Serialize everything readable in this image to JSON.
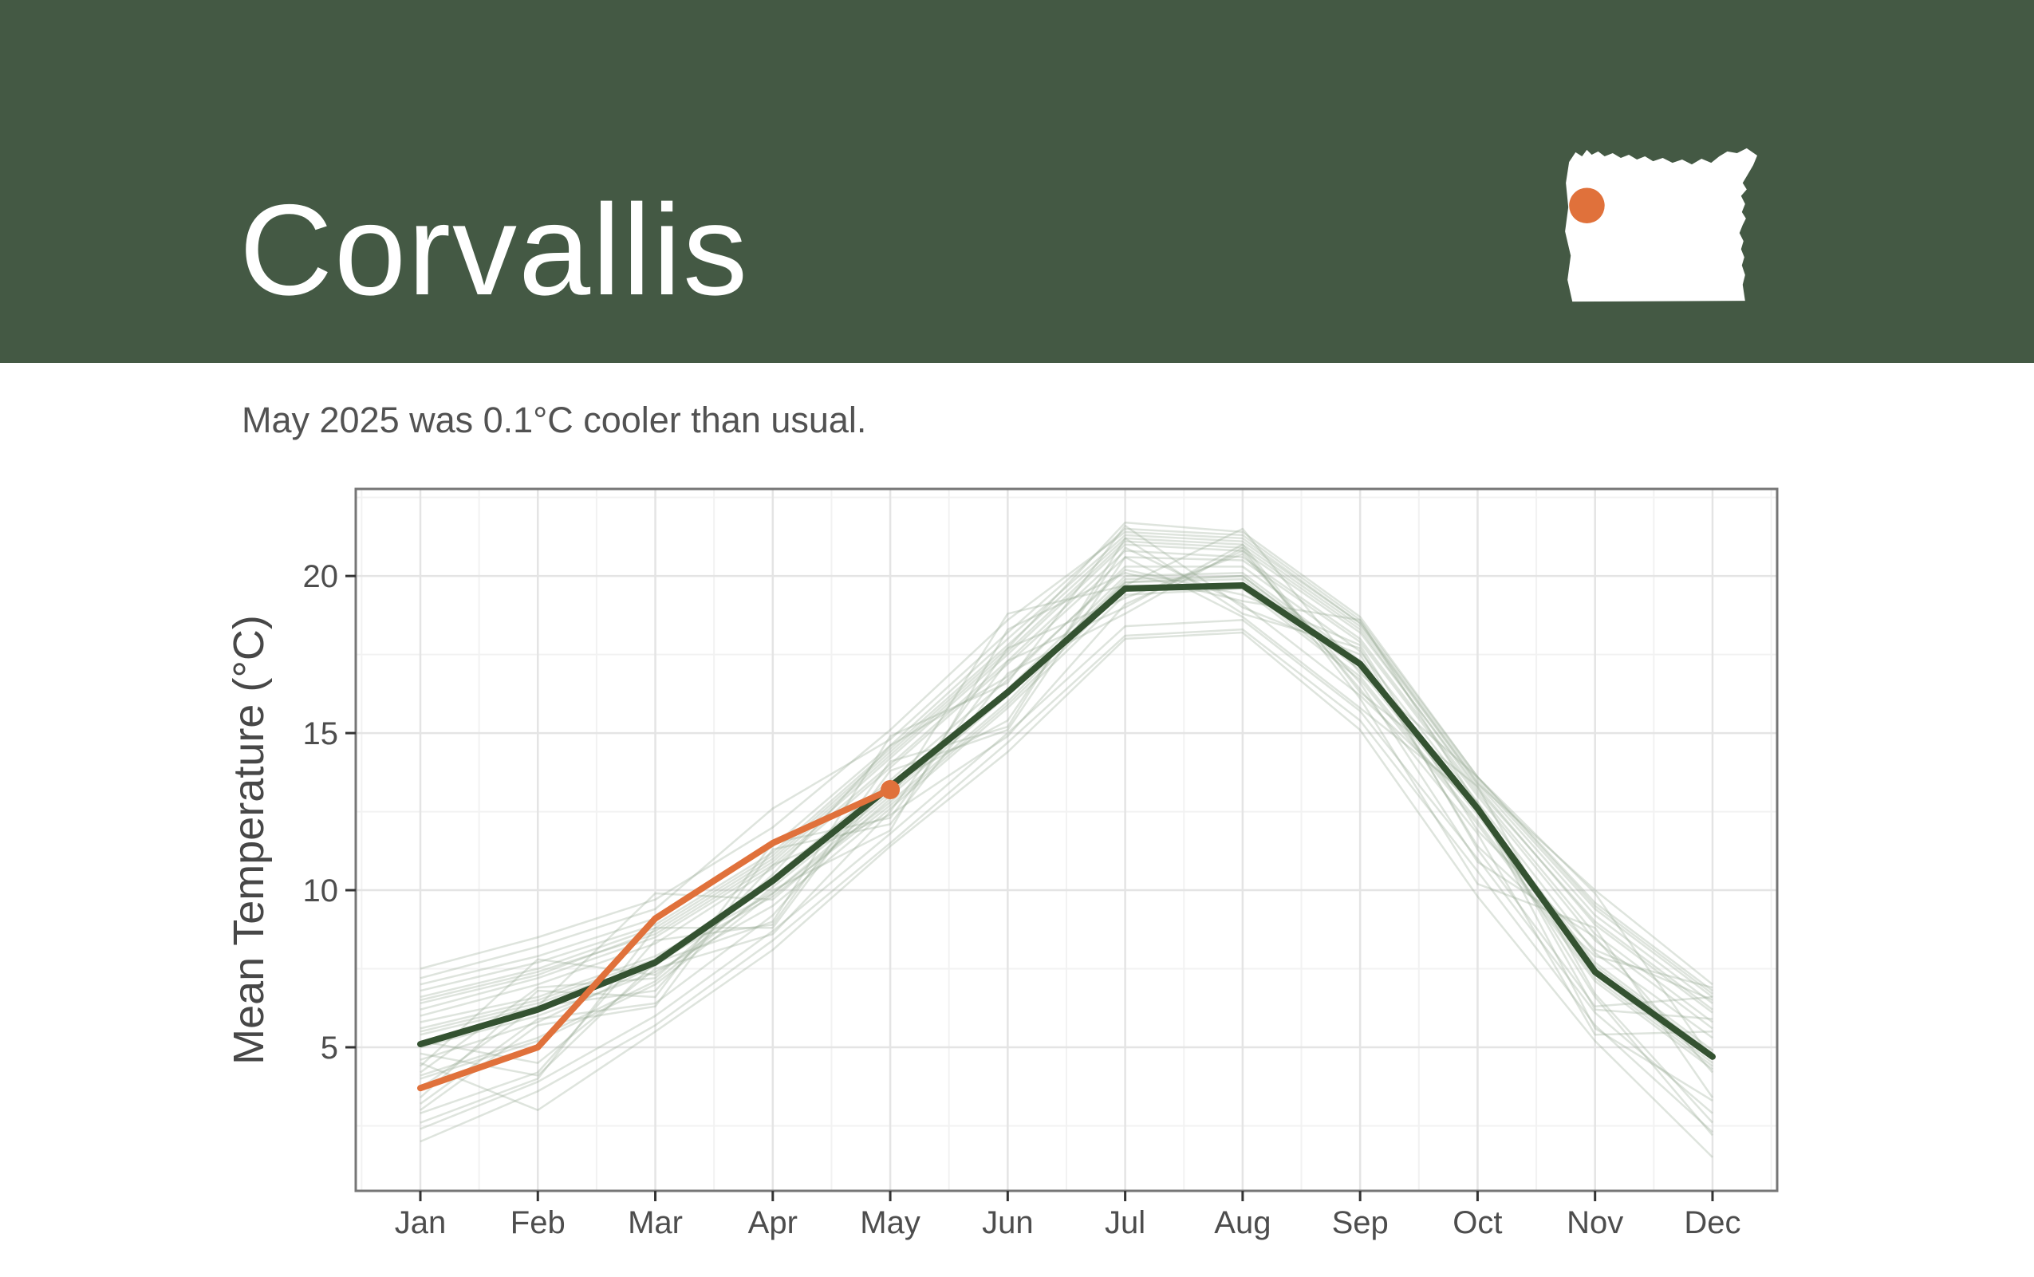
{
  "header": {
    "title": "Corvallis",
    "background_color": "#445944",
    "map": {
      "state": "Oregon",
      "silhouette_color": "#ffffff",
      "marker_color": "#E0713B"
    }
  },
  "subtitle": "May 2025 was 0.1°C cooler than usual.",
  "chart_data": {
    "type": "line",
    "title": "",
    "xlabel": "",
    "ylabel": "Mean Temperature (°C)",
    "categories": [
      "Jan",
      "Feb",
      "Mar",
      "Apr",
      "May",
      "Jun",
      "Jul",
      "Aug",
      "Sep",
      "Oct",
      "Nov",
      "Dec"
    ],
    "y_ticks": [
      5,
      10,
      15,
      20
    ],
    "ylim": [
      0.4,
      22.8
    ],
    "grid": "major+minor",
    "legend": "none",
    "mean_series": {
      "name": "historical-mean",
      "color": "#345231",
      "values": [
        5.1,
        6.2,
        7.7,
        10.3,
        13.3,
        16.3,
        19.6,
        19.7,
        17.2,
        12.6,
        7.4,
        4.7
      ]
    },
    "current_series": {
      "name": "2025",
      "color": "#E0713B",
      "values": [
        3.7,
        5.0,
        9.1,
        11.5,
        13.2
      ],
      "endpoint_dot": true,
      "endpoint_month": "May",
      "endpoint_value": 13.2
    },
    "historical_series": {
      "name": "individual-years",
      "color": "#93a48f",
      "opacity": 0.3,
      "lines": [
        [
          5.8,
          6.6,
          7.9,
          9.9,
          12.8,
          16.0,
          19.8,
          19.9,
          17.0,
          12.4,
          7.3,
          4.5
        ],
        [
          4.2,
          6.9,
          7.2,
          10.5,
          14.6,
          16.8,
          20.2,
          19.4,
          17.8,
          11.9,
          8.1,
          6.5
        ],
        [
          6.5,
          7.4,
          8.6,
          10.9,
          14.2,
          17.5,
          21.0,
          20.8,
          18.2,
          13.3,
          8.9,
          6.1
        ],
        [
          3.2,
          5.9,
          6.4,
          9.2,
          13.4,
          15.4,
          20.9,
          19.1,
          16.2,
          12.6,
          6.6,
          2.2
        ],
        [
          7.2,
          8.2,
          9.4,
          12.6,
          14.8,
          18.2,
          21.5,
          21.3,
          18.6,
          13.6,
          9.6,
          6.8
        ],
        [
          2.4,
          3.9,
          6.0,
          8.7,
          11.8,
          15.0,
          18.4,
          18.6,
          15.7,
          11.0,
          6.1,
          2.9
        ],
        [
          5.2,
          4.5,
          7.5,
          8.6,
          12.5,
          17.7,
          19.3,
          20.7,
          16.6,
          10.9,
          8.5,
          4.2
        ],
        [
          6.0,
          7.0,
          8.3,
          10.7,
          13.9,
          17.2,
          20.6,
          20.5,
          17.9,
          13.0,
          8.4,
          5.6
        ],
        [
          4.6,
          5.8,
          7.6,
          10.2,
          13.2,
          16.4,
          20.0,
          20.1,
          17.3,
          12.6,
          7.7,
          4.9
        ],
        [
          3.7,
          6.3,
          6.8,
          10.8,
          12.4,
          14.9,
          19.1,
          20.8,
          16.4,
          11.8,
          5.4,
          5.5
        ],
        [
          6.8,
          7.7,
          8.9,
          11.2,
          14.5,
          17.8,
          21.2,
          21.0,
          18.4,
          13.4,
          9.2,
          6.4
        ],
        [
          2.9,
          4.2,
          8.4,
          8.9,
          14.1,
          15.2,
          21.2,
          18.8,
          17.7,
          11.3,
          6.3,
          6.6
        ],
        [
          5.5,
          6.4,
          7.7,
          9.8,
          12.7,
          15.9,
          19.6,
          19.7,
          16.8,
          12.2,
          7.2,
          4.4
        ],
        [
          4.0,
          5.2,
          7.0,
          9.9,
          13.0,
          16.2,
          19.9,
          20.0,
          17.1,
          12.5,
          7.5,
          4.7
        ],
        [
          6.2,
          7.2,
          8.5,
          10.8,
          14.0,
          17.3,
          20.8,
          20.6,
          18.0,
          13.1,
          8.6,
          5.8
        ],
        [
          3.4,
          6.8,
          6.6,
          11.5,
          12.3,
          17.3,
          19.0,
          21.0,
          16.3,
          13.3,
          6.7,
          2.6
        ],
        [
          7.0,
          7.9,
          9.1,
          11.4,
          14.6,
          18.0,
          21.3,
          21.1,
          18.5,
          13.5,
          9.4,
          6.6
        ],
        [
          2.6,
          4.0,
          8.8,
          8.8,
          13.8,
          15.1,
          20.6,
          18.7,
          15.8,
          12.8,
          6.2,
          5.9
        ],
        [
          5.0,
          6.0,
          7.4,
          9.5,
          12.6,
          15.8,
          19.4,
          19.6,
          16.7,
          12.1,
          7.1,
          4.3
        ],
        [
          4.4,
          7.8,
          7.3,
          10.0,
          11.9,
          18.3,
          20.1,
          19.2,
          18.6,
          12.7,
          5.6,
          3.3
        ],
        [
          6.4,
          7.3,
          8.7,
          11.0,
          14.3,
          17.6,
          21.1,
          20.9,
          18.3,
          13.2,
          9.0,
          6.2
        ],
        [
          3.0,
          5.7,
          6.3,
          11.3,
          12.1,
          16.9,
          18.8,
          20.9,
          16.1,
          10.2,
          8.8,
          3.4
        ],
        [
          5.6,
          6.5,
          7.8,
          10.4,
          13.5,
          16.7,
          20.3,
          20.3,
          17.6,
          12.8,
          8.0,
          5.3
        ],
        [
          4.8,
          4.1,
          7.7,
          9.0,
          14.9,
          16.6,
          21.6,
          19.0,
          17.5,
          11.4,
          7.9,
          6.9
        ],
        [
          6.6,
          7.5,
          8.8,
          11.1,
          14.4,
          17.7,
          21.7,
          21.4,
          18.7,
          13.6,
          9.5,
          6.7
        ],
        [
          2.0,
          3.6,
          5.7,
          8.4,
          11.5,
          14.7,
          18.1,
          18.3,
          15.4,
          10.6,
          5.7,
          2.3
        ],
        [
          5.4,
          6.3,
          9.9,
          9.7,
          12.9,
          18.8,
          19.7,
          21.5,
          16.9,
          13.6,
          9.9,
          4.6
        ],
        [
          4.1,
          5.3,
          7.1,
          10.1,
          13.1,
          16.3,
          19.8,
          20.0,
          17.2,
          12.5,
          7.6,
          4.8
        ],
        [
          4.5,
          3.0,
          5.5,
          8.1,
          11.4,
          14.4,
          18.0,
          18.2,
          15.1,
          9.8,
          5.2,
          1.5
        ],
        [
          7.5,
          8.5,
          9.7,
          12.0,
          15.1,
          18.6,
          21.4,
          21.2,
          18.5,
          13.4,
          10.0,
          7.0
        ]
      ]
    }
  }
}
